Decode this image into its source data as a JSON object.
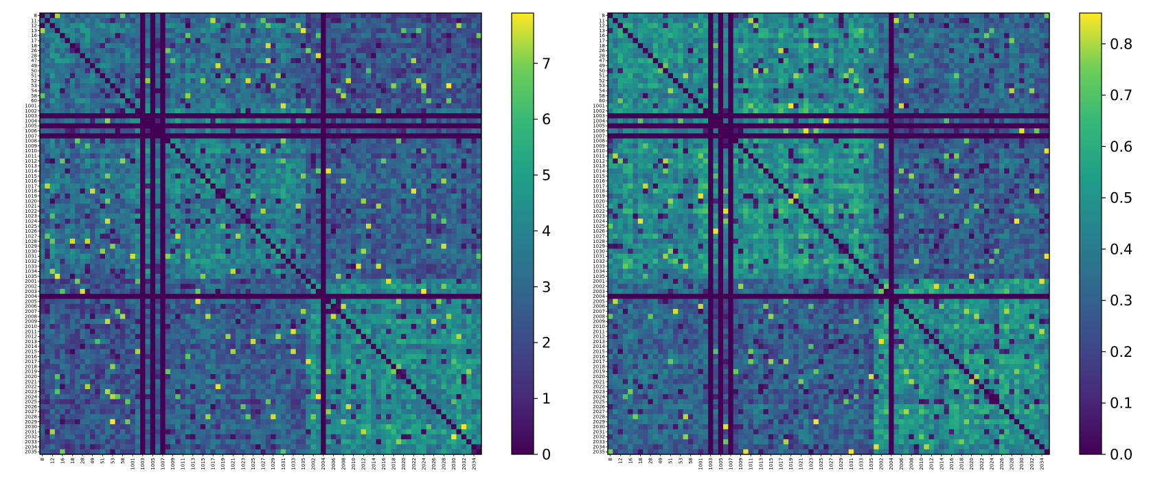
{
  "chart_data": [
    {
      "type": "heatmap",
      "name": "left-matrix",
      "title": "",
      "xlabel": "",
      "ylabel": "",
      "row_labels": [
        "8",
        "11",
        "12",
        "13",
        "16",
        "17",
        "18",
        "26",
        "28",
        "47",
        "49",
        "50",
        "51",
        "52",
        "53",
        "54",
        "58",
        "60",
        "1001",
        "1002",
        "1003",
        "1004",
        "1005",
        "1006",
        "1007",
        "1008",
        "1009",
        "1010",
        "1011",
        "1012",
        "1013",
        "1014",
        "1015",
        "1016",
        "1017",
        "1018",
        "1019",
        "1020",
        "1021",
        "1022",
        "1023",
        "1024",
        "1025",
        "1026",
        "1027",
        "1028",
        "1029",
        "1030",
        "1031",
        "1032",
        "1033",
        "1034",
        "1035",
        "2001",
        "2002",
        "2003",
        "2004",
        "2005",
        "2006",
        "2007",
        "2008",
        "2009",
        "2010",
        "2011",
        "2012",
        "2013",
        "2014",
        "2015",
        "2016",
        "2017",
        "2018",
        "2019",
        "2020",
        "2021",
        "2022",
        "2023",
        "2024",
        "2025",
        "2026",
        "2027",
        "2028",
        "2029",
        "2030",
        "2031",
        "2032",
        "2033",
        "2034",
        "2035"
      ],
      "col_labels": [
        "8",
        "12",
        "16",
        "18",
        "28",
        "49",
        "51",
        "53",
        "58",
        "1001",
        "1003",
        "1005",
        "1007",
        "1009",
        "1011",
        "1013",
        "1015",
        "1017",
        "1019",
        "1021",
        "1023",
        "1025",
        "1027",
        "1029",
        "1031",
        "1033",
        "1035",
        "2002",
        "2004",
        "2006",
        "2008",
        "2010",
        "2012",
        "2014",
        "2016",
        "2018",
        "2020",
        "2022",
        "2024",
        "2026",
        "2028",
        "2030",
        "2032",
        "2034"
      ],
      "zero_rows_cols": [
        "1005",
        "1007",
        "2004",
        "1003"
      ],
      "colorbar": {
        "min": 0,
        "max": 7.9,
        "ticks": [
          0,
          1,
          2,
          3,
          4,
          5,
          6,
          7
        ],
        "colormap": "viridis"
      },
      "block_means": [
        [
          3.6,
          3.2,
          2.3
        ],
        [
          3.2,
          3.8,
          2.6
        ],
        [
          2.3,
          2.6,
          3.9
        ]
      ],
      "diagonal": 0,
      "seed": 7
    },
    {
      "type": "heatmap",
      "name": "right-matrix",
      "title": "",
      "xlabel": "",
      "ylabel": "",
      "row_labels": [
        "8",
        "11",
        "12",
        "13",
        "16",
        "17",
        "18",
        "26",
        "28",
        "47",
        "49",
        "50",
        "51",
        "52",
        "53",
        "54",
        "58",
        "60",
        "1001",
        "1002",
        "1003",
        "1004",
        "1005",
        "1006",
        "1007",
        "1008",
        "1009",
        "1010",
        "1011",
        "1012",
        "1013",
        "1014",
        "1015",
        "1016",
        "1017",
        "1018",
        "1019",
        "1020",
        "1021",
        "1022",
        "1023",
        "1024",
        "1025",
        "1026",
        "1027",
        "1028",
        "1029",
        "1030",
        "1031",
        "1032",
        "1033",
        "1034",
        "1035",
        "2001",
        "2002",
        "2003",
        "2004",
        "2005",
        "2006",
        "2007",
        "2008",
        "2009",
        "2010",
        "2011",
        "2012",
        "2013",
        "2014",
        "2015",
        "2016",
        "2017",
        "2018",
        "2019",
        "2020",
        "2021",
        "2022",
        "2023",
        "2024",
        "2025",
        "2026",
        "2027",
        "2028",
        "2029",
        "2030",
        "2031",
        "2032",
        "2033",
        "2034",
        "2035"
      ],
      "col_labels": [
        "8",
        "12",
        "16",
        "18",
        "28",
        "49",
        "51",
        "53",
        "58",
        "1001",
        "1003",
        "1005",
        "1007",
        "1009",
        "1011",
        "1013",
        "1015",
        "1017",
        "1019",
        "1021",
        "1023",
        "1025",
        "1027",
        "1029",
        "1031",
        "1033",
        "1035",
        "2002",
        "2004",
        "2006",
        "2008",
        "2010",
        "2012",
        "2014",
        "2016",
        "2018",
        "2020",
        "2022",
        "2024",
        "2026",
        "2028",
        "2030",
        "2032",
        "2034"
      ],
      "zero_rows_cols": [
        "1005",
        "1007",
        "2004",
        "1003"
      ],
      "colorbar": {
        "min": 0,
        "max": 0.86,
        "ticks": [
          0.0,
          0.1,
          0.2,
          0.3,
          0.4,
          0.5,
          0.6,
          0.7,
          0.8
        ],
        "colormap": "viridis"
      },
      "block_means": [
        [
          0.48,
          0.46,
          0.33
        ],
        [
          0.46,
          0.5,
          0.3
        ],
        [
          0.33,
          0.3,
          0.5
        ]
      ],
      "diagonal": 0,
      "seed": 19
    }
  ]
}
